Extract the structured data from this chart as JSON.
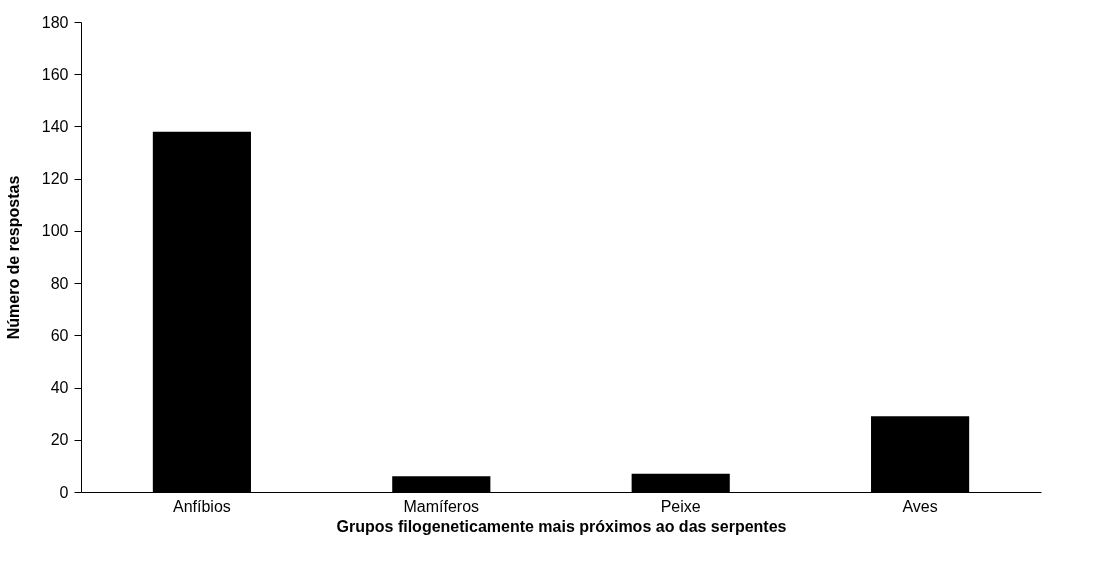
{
  "chart_data": {
    "type": "bar",
    "xlabel": "Grupos filogeneticamente mais próximos ao das serpentes",
    "ylabel": "Número de respostas",
    "categories": [
      "Anfíbios",
      "Mamíferos",
      "Peixe",
      "Aves"
    ],
    "values": [
      138,
      6,
      7,
      29
    ],
    "color": "#000000",
    "ylim": [
      0,
      180
    ],
    "yticks": [
      0,
      20,
      40,
      60,
      80,
      100,
      120,
      140,
      160,
      180
    ],
    "grid": false
  }
}
